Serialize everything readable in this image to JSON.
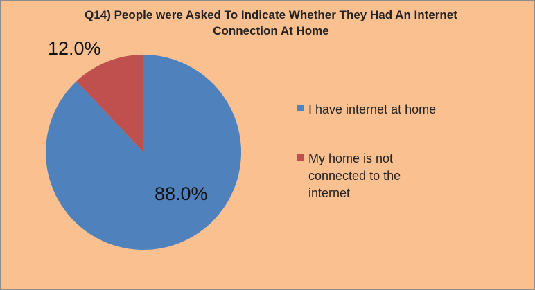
{
  "chart_data": {
    "type": "pie",
    "title": "Q14) People were Asked To Indicate Whether They Had An Internet Connection At Home",
    "categories": [
      "I have internet at home",
      "My home is not connected to the internet"
    ],
    "values": [
      88.0,
      12.0
    ],
    "labels": [
      "88.0%",
      "12.0%"
    ],
    "colors": [
      "#4f81bd",
      "#c0504d"
    ],
    "legend": "right",
    "background": "#fac090"
  }
}
